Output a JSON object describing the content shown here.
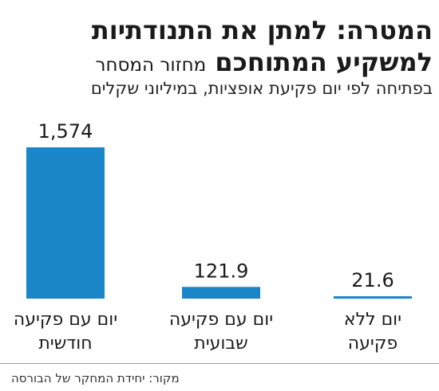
{
  "header": {
    "title_line1": "המטרה: למתן את התנודתיות",
    "title_line2_bold": "למשקיע המתוחכם",
    "title_line2_regular": "מחזור המסחר",
    "subtitle": "בפתיחה לפי יום פקיעת אופציות, במיליוני שקלים"
  },
  "chart_data": {
    "type": "bar",
    "categories": [
      [
        "יום עם פקיעה",
        "חודשית"
      ],
      [
        "יום עם פקיעה",
        "שבועית"
      ],
      [
        "יום ללא",
        "פקיעה"
      ]
    ],
    "values": [
      1574,
      121.9,
      21.6
    ],
    "value_labels": [
      "1,574",
      "121.9",
      "21.6"
    ],
    "bar_color": "#1a86c8",
    "ylim": [
      0,
      1574
    ]
  },
  "source": "מקור: יחידת המחקר של הבורסה"
}
